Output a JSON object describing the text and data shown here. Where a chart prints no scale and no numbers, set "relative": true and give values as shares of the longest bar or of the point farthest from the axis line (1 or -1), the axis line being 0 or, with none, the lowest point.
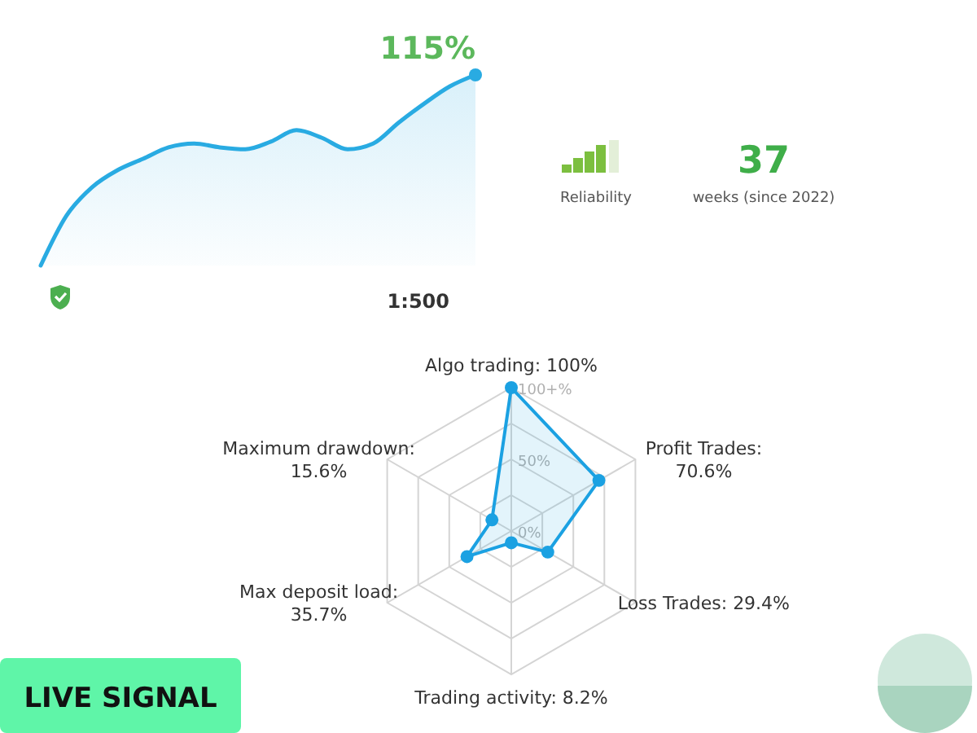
{
  "chart_data": [
    {
      "type": "area",
      "relative": true,
      "categories": [
        null,
        null,
        null,
        null,
        null,
        null,
        null,
        null,
        null,
        null,
        null,
        null,
        null,
        null,
        null,
        null,
        null,
        null
      ],
      "series": [
        {
          "color": "#29abe2",
          "values": [
            0,
            0.26,
            0.41,
            0.5,
            0.56,
            0.62,
            0.64,
            0.62,
            0.61,
            0.65,
            0.71,
            0.67,
            0.61,
            0.64,
            0.75,
            0.85,
            0.94,
            1
          ]
        }
      ],
      "annotations": [
        "115%"
      ]
    },
    {
      "type": "radar",
      "categories": [
        "Algo trading: 100%",
        "Profit Trades: 70.6%",
        "Loss Trades: 29.4%",
        "Trading activity: 8.2%",
        "Max deposit load: 35.7%",
        "Maximum drawdown: 15.6%"
      ],
      "series": [
        {
          "color": "#1ba1e2",
          "values": [
            100,
            70.6,
            29.4,
            8.2,
            35.7,
            15.6
          ]
        }
      ],
      "ylim": [
        0,
        100
      ],
      "yticks": [
        {
          "value": 0,
          "label": "0%"
        },
        {
          "value": 50,
          "label": "50%"
        },
        {
          "value": 100,
          "label": "100+%"
        }
      ],
      "grid": true,
      "marker": "circle"
    },
    {
      "type": "other",
      "annotations": [
        "1:500",
        "Reliability",
        "37",
        "weeks (since 2022)",
        "LIVE SIGNAL"
      ]
    }
  ]
}
